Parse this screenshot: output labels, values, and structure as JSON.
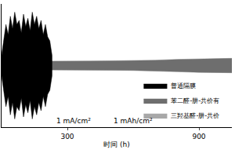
{
  "chart_data": {
    "type": "band",
    "xlabel": "时间 (h)",
    "xlim": [
      0,
      1050
    ],
    "xticks": [
      300,
      900
    ],
    "ylim": [
      -0.3,
      0.3
    ],
    "tick_labels": "x",
    "grid": false,
    "legend": "lower right",
    "annotations": [
      {
        "text": "1 mA/cm²",
        "x": 330,
        "y": -0.27
      },
      {
        "text": "1 mAh/cm²",
        "x": 600,
        "y": -0.27
      }
    ],
    "series": [
      {
        "name": "普通隔膜",
        "color": "#000000",
        "x": [
          0,
          10,
          20,
          30,
          40,
          50,
          60,
          70,
          80,
          90,
          100,
          110,
          120,
          130,
          140,
          150,
          160,
          170,
          180,
          190,
          200,
          210,
          220,
          230
        ],
        "values": [
          0.05,
          0.12,
          0.2,
          0.15,
          0.24,
          0.18,
          0.26,
          0.2,
          0.22,
          0.16,
          0.25,
          0.19,
          0.23,
          0.17,
          0.26,
          0.2,
          0.24,
          0.18,
          0.22,
          0.15,
          0.2,
          0.14,
          0.12,
          0.05
        ]
      },
      {
        "name": "苯二醛-肼-共价有",
        "color": "#6e6e6e",
        "x": [
          0,
          100,
          200,
          300,
          400,
          500,
          600,
          700,
          800,
          900,
          1000,
          1050
        ],
        "values": [
          0.02,
          0.02,
          0.02,
          0.022,
          0.022,
          0.023,
          0.024,
          0.026,
          0.03,
          0.033,
          0.035,
          0.035
        ]
      },
      {
        "name": "三羟基醛-肼-共价",
        "color": "#a8a8a8",
        "x": [
          0,
          100,
          200,
          300,
          400,
          500,
          600,
          700,
          800,
          900,
          1000,
          1050
        ],
        "values": [
          0.015,
          0.015,
          0.015,
          0.015,
          0.015,
          0.016,
          0.016,
          0.016,
          0.017,
          0.017,
          0.018,
          0.018
        ]
      }
    ]
  }
}
